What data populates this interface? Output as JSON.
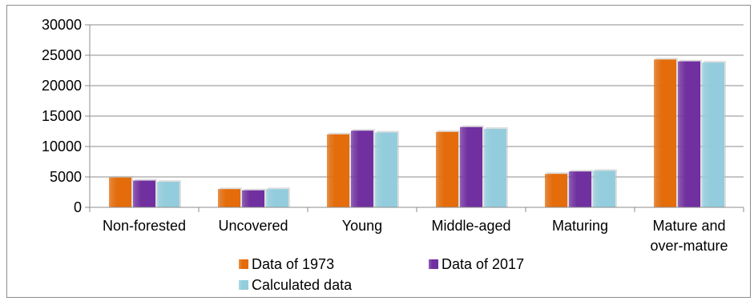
{
  "chart_data": {
    "type": "bar",
    "categories": [
      "Non-forested",
      "Uncovered",
      "Young",
      "Middle-aged",
      "Maturing",
      "Mature and over-mature"
    ],
    "category_lines": [
      [
        "Non-forested"
      ],
      [
        "Uncovered"
      ],
      [
        "Young"
      ],
      [
        "Middle-aged"
      ],
      [
        "Maturing"
      ],
      [
        "Mature and",
        "over-mature"
      ]
    ],
    "series": [
      {
        "name": "Data of 1973",
        "values": [
          4900,
          3000,
          12000,
          12400,
          5500,
          24300
        ],
        "color": "#e46c0a"
      },
      {
        "name": "Data of 2017",
        "values": [
          4400,
          2800,
          12600,
          13200,
          5900,
          24000
        ],
        "color": "#7030a0"
      },
      {
        "name": "Calculated data",
        "values": [
          4200,
          3000,
          12300,
          12900,
          6000,
          23800
        ],
        "color": "#93cddd"
      }
    ],
    "yticks": [
      "0",
      "5000",
      "10000",
      "15000",
      "20000",
      "25000",
      "30000"
    ],
    "ylim": [
      0,
      30000
    ],
    "grid": true,
    "legend_position": "bottom"
  }
}
